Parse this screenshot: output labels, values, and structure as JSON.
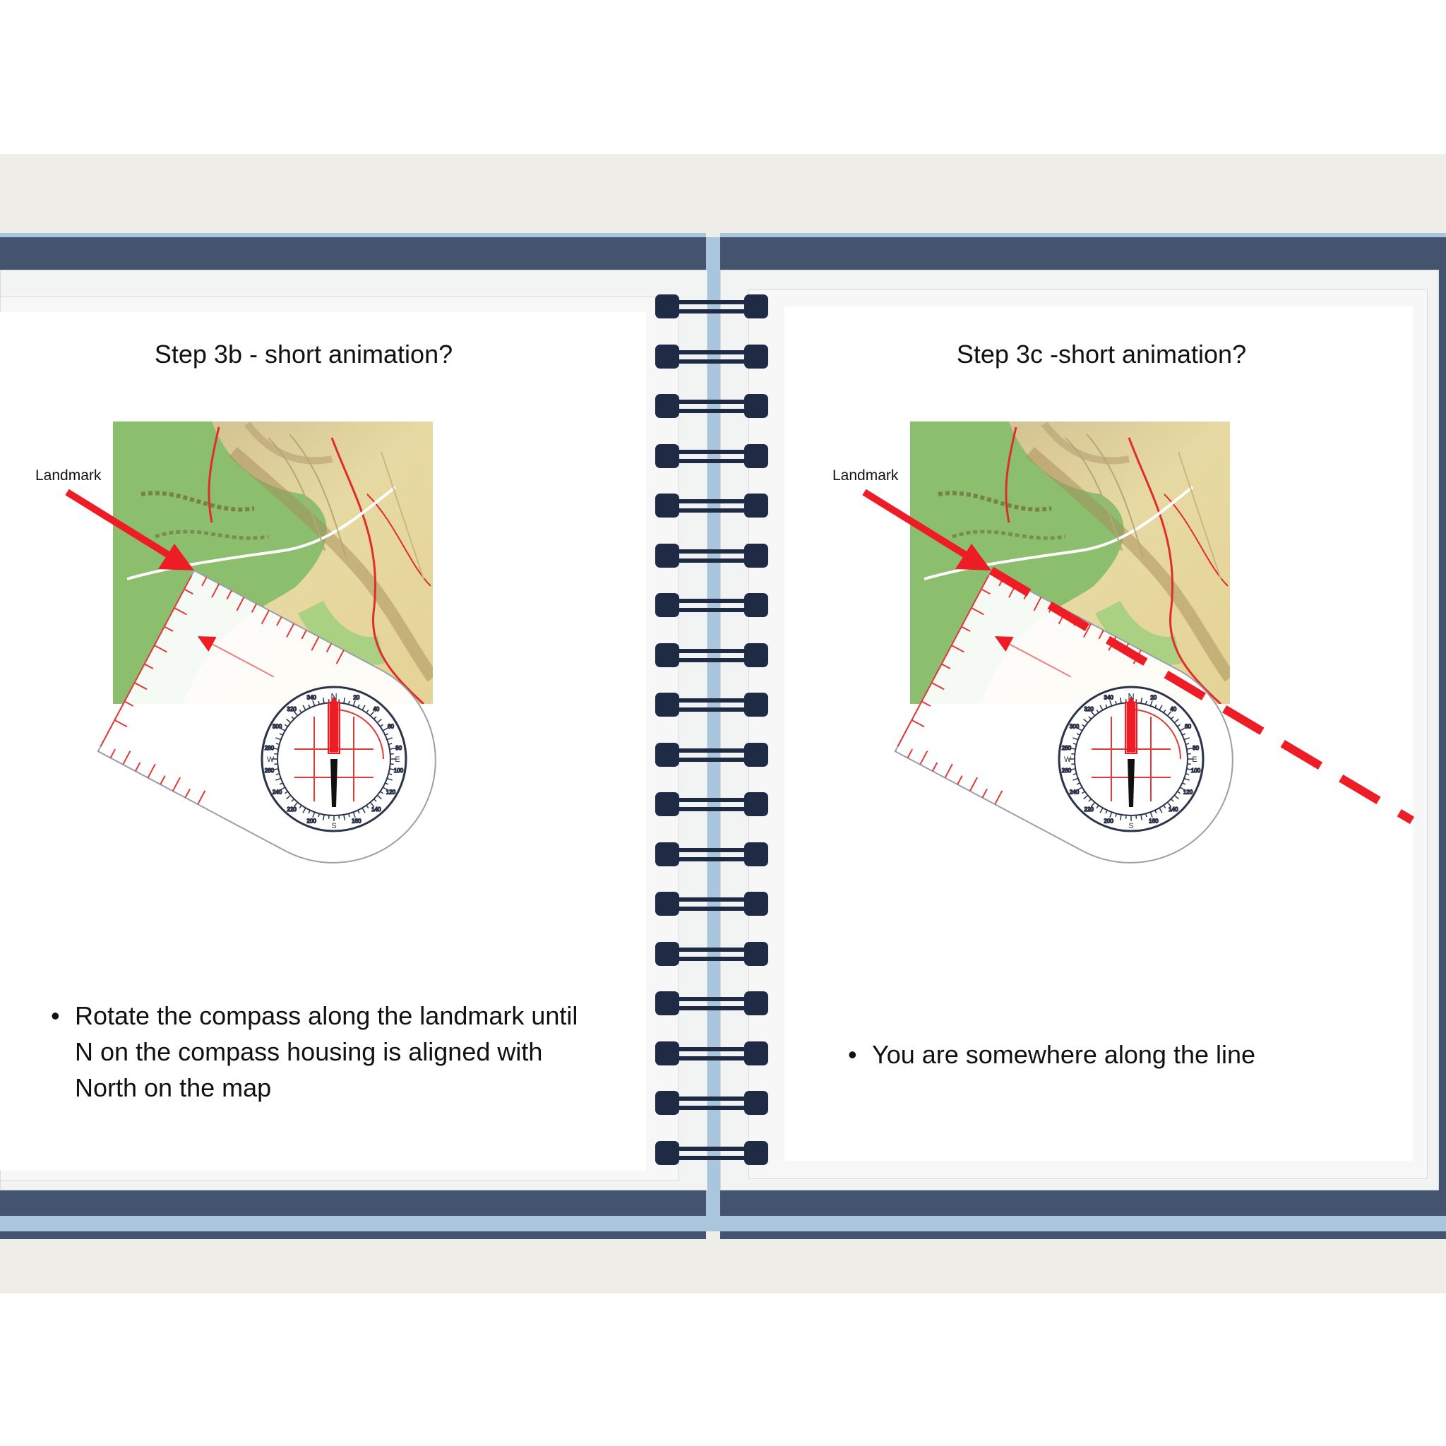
{
  "left_page": {
    "title": "Step 3b - short animation?",
    "landmark_label": "Landmark",
    "bullet": "Rotate the compass along the landmark until N on the compass housing is aligned with North on the map"
  },
  "right_page": {
    "title": "Step 3c -short animation?",
    "landmark_label": "Landmark",
    "bullet": "You are somewhere along the line"
  },
  "compass": {
    "north_letter": "N",
    "south_letter": "S",
    "east_letter": "E",
    "west_letter": "W",
    "dial_labels": [
      "20",
      "40",
      "60",
      "80",
      "100",
      "120",
      "140",
      "160",
      "200",
      "220",
      "240",
      "260",
      "280",
      "300",
      "320",
      "340"
    ]
  },
  "colors": {
    "cover": "#44536e",
    "spine": "#a9c6dc",
    "arrow": "#ee1c24",
    "ring": "#2b3448"
  }
}
